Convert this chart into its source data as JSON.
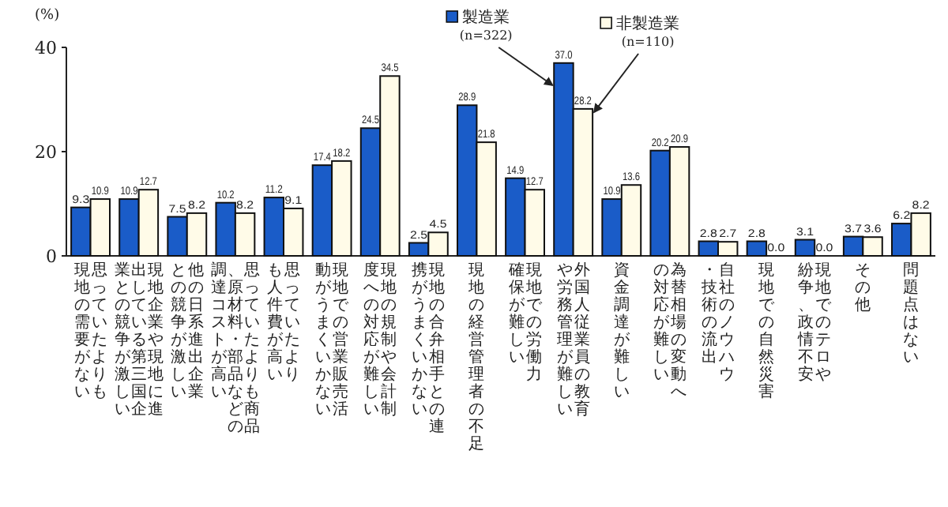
{
  "chart_data": {
    "type": "bar",
    "ylabel": "(%)",
    "ylim": [
      0,
      40
    ],
    "yticks": [
      0,
      20,
      40
    ],
    "grid": false,
    "legend": "top",
    "categories": [
      "思っていたよりも現地の需要がない",
      "現地企業や現地に進出している第三国企業との競争が激しい",
      "他の日系進出企業との競争が激しい",
      "思っていたよりも商品、原材料・部品などの調達コストが高い",
      "思っていたよりも人件費が高い",
      "現地での営業販売活動がうまくいかない",
      "現地の規制や会計制度への対応が難しい",
      "現地の合弁相手との連携がうまくいかない",
      "現地の経営管理者の不足",
      "現地での労働力確保が難しい",
      "外国人従業員の教育や労務管理が難しい",
      "資金調達が難しい",
      "為替相場の変動への対応が難しい",
      "自社のノウハウ・技術の流出",
      "現地での自然災害",
      "現地でのテロや紛争、政情不安",
      "その他",
      "問題点はない"
    ],
    "series": [
      {
        "name": "製造業",
        "color": "#1a5cc8",
        "values": [
          9.3,
          10.9,
          7.5,
          10.2,
          11.2,
          17.4,
          24.5,
          2.5,
          28.9,
          14.9,
          37.0,
          10.9,
          20.2,
          2.8,
          2.8,
          3.1,
          3.7,
          6.2
        ],
        "value_labels": [
          "9.3",
          "10.9",
          "7.5",
          "10.2",
          "11.2",
          "17.4",
          "24.5",
          "2.5",
          "28.9",
          "14.9",
          "37.0",
          "10.9",
          "20.2",
          "2.8",
          "2.8",
          "3.1",
          "3.7",
          "6.2"
        ]
      },
      {
        "name": "非製造業",
        "color": "#fffbe8",
        "values": [
          10.9,
          12.7,
          8.2,
          8.2,
          9.1,
          18.2,
          34.5,
          4.5,
          21.8,
          12.7,
          28.2,
          13.6,
          20.9,
          2.7,
          0.0,
          0.0,
          3.6,
          8.2
        ],
        "value_labels": [
          "10.9",
          "12.7",
          "8.2",
          "8.2",
          "9.1",
          "18.2",
          "34.5",
          "4.5",
          "21.8",
          "12.7",
          "28.2",
          "13.6",
          "20.9",
          "2.7",
          "0.0",
          "0.0",
          "3.6",
          "8.2"
        ]
      }
    ],
    "annotations": [
      "(n=322)",
      "(n=110)"
    ]
  }
}
